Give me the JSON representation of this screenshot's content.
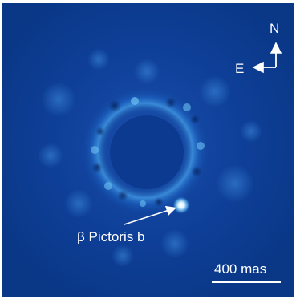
{
  "image": {
    "compass": {
      "north_label": "N",
      "east_label": "E"
    },
    "object_label": "β Pictoris b",
    "scale_bar_label": "400 mas"
  },
  "colors": {
    "background": "#0a3a8e",
    "annotation": "#ffffff",
    "disk_glow": "#4aa3e8"
  }
}
